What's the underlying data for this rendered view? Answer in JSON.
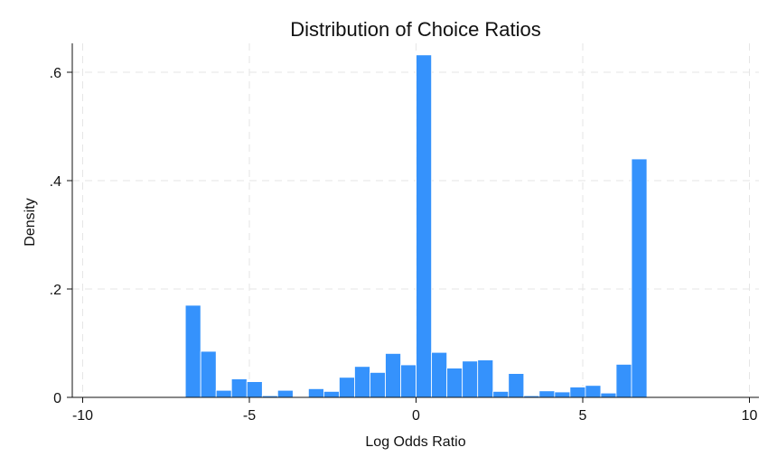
{
  "chart_data": {
    "type": "bar",
    "title": "Distribution of Choice Ratios",
    "xlabel": "Log Odds Ratio",
    "ylabel": "Density",
    "xlim": [
      -10,
      10
    ],
    "ylim": [
      0,
      0.65
    ],
    "xticks": [
      -10,
      -5,
      0,
      5,
      10
    ],
    "xtick_labels": [
      "-10",
      "-5",
      "0",
      "5",
      "10"
    ],
    "yticks": [
      0,
      0.2,
      0.4,
      0.6
    ],
    "ytick_labels": [
      "0",
      ".2",
      ".4",
      ".6"
    ],
    "grid": true,
    "bar_color": "#3592fc",
    "bin_width": 0.4615,
    "bin_start": -6.92,
    "values": [
      0.17,
      0.085,
      0.013,
      0.034,
      0.029,
      0.003,
      0.013,
      0.0,
      0.016,
      0.011,
      0.037,
      0.057,
      0.046,
      0.081,
      0.06,
      0.632,
      0.083,
      0.054,
      0.067,
      0.069,
      0.011,
      0.044,
      0.003,
      0.012,
      0.01,
      0.019,
      0.022,
      0.008,
      0.061,
      0.44
    ]
  }
}
